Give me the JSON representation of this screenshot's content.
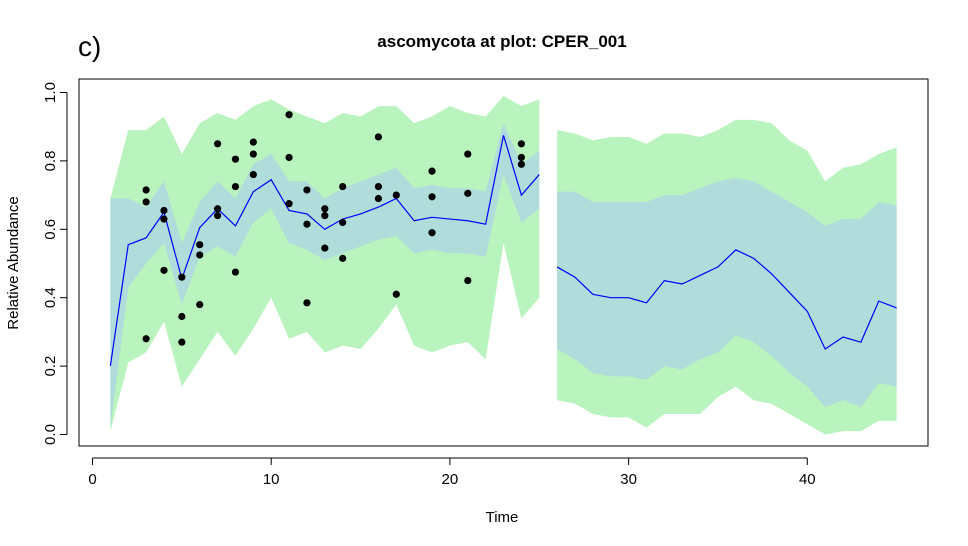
{
  "chart_data": {
    "type": "line",
    "panel_label": "c)",
    "title": "ascomycota at plot: CPER_001",
    "xlabel": "Time",
    "ylabel": "Relative Abundance",
    "xlim": [
      0,
      46
    ],
    "ylim": [
      0,
      1
    ],
    "x_ticks": [
      0,
      10,
      20,
      30,
      40
    ],
    "y_ticks": [
      0.0,
      0.2,
      0.4,
      0.6,
      0.8,
      1.0
    ],
    "x_tick_labels": [
      "0",
      "10",
      "20",
      "30",
      "40"
    ],
    "y_tick_labels": [
      "0.0",
      "0.2",
      "0.4",
      "0.6",
      "0.8",
      "1.0"
    ],
    "grid": false,
    "colors": {
      "outer_band": "#b9f3bd",
      "inner_band": "#b0dcdc",
      "mean_line": "#0000ff",
      "points": "#000000"
    },
    "segments": [
      {
        "x": [
          1,
          2,
          3,
          4,
          5,
          6,
          7,
          8,
          9,
          10,
          11,
          12,
          13,
          14,
          15,
          16,
          17,
          18,
          19,
          20,
          21,
          22,
          23,
          24,
          25
        ],
        "mean": [
          0.2,
          0.555,
          0.575,
          0.65,
          0.455,
          0.605,
          0.66,
          0.61,
          0.71,
          0.745,
          0.655,
          0.645,
          0.6,
          0.63,
          0.645,
          0.665,
          0.69,
          0.625,
          0.635,
          0.63,
          0.625,
          0.615,
          0.875,
          0.7,
          0.76
        ],
        "ci50_lower": [
          0.02,
          0.43,
          0.5,
          0.56,
          0.38,
          0.52,
          0.55,
          0.52,
          0.62,
          0.66,
          0.56,
          0.54,
          0.51,
          0.53,
          0.55,
          0.57,
          0.58,
          0.53,
          0.54,
          0.53,
          0.53,
          0.52,
          0.76,
          0.62,
          0.66
        ],
        "ci50_upper": [
          0.69,
          0.69,
          0.665,
          0.74,
          0.56,
          0.68,
          0.74,
          0.69,
          0.79,
          0.82,
          0.74,
          0.74,
          0.69,
          0.72,
          0.74,
          0.76,
          0.78,
          0.72,
          0.73,
          0.72,
          0.72,
          0.71,
          0.91,
          0.79,
          0.83
        ],
        "ci95_lower": [
          0.01,
          0.21,
          0.24,
          0.33,
          0.14,
          0.22,
          0.3,
          0.23,
          0.31,
          0.4,
          0.28,
          0.3,
          0.24,
          0.26,
          0.25,
          0.31,
          0.38,
          0.26,
          0.24,
          0.26,
          0.27,
          0.22,
          0.56,
          0.34,
          0.4
        ],
        "ci95_upper": [
          0.69,
          0.89,
          0.89,
          0.93,
          0.82,
          0.91,
          0.94,
          0.92,
          0.96,
          0.98,
          0.95,
          0.93,
          0.91,
          0.94,
          0.93,
          0.96,
          0.96,
          0.91,
          0.93,
          0.96,
          0.94,
          0.93,
          0.99,
          0.96,
          0.98
        ]
      },
      {
        "x": [
          26,
          27,
          28,
          29,
          30,
          31,
          32,
          33,
          34,
          35,
          36,
          37,
          38,
          39,
          40,
          41,
          42,
          43,
          44,
          45
        ],
        "mean": [
          0.49,
          0.46,
          0.41,
          0.4,
          0.4,
          0.385,
          0.45,
          0.44,
          0.465,
          0.49,
          0.54,
          0.515,
          0.47,
          0.415,
          0.36,
          0.25,
          0.285,
          0.27,
          0.39,
          0.37
        ],
        "ci50_lower": [
          0.25,
          0.22,
          0.18,
          0.17,
          0.17,
          0.16,
          0.2,
          0.19,
          0.22,
          0.24,
          0.29,
          0.27,
          0.23,
          0.18,
          0.14,
          0.08,
          0.1,
          0.08,
          0.15,
          0.14
        ],
        "ci50_upper": [
          0.71,
          0.71,
          0.68,
          0.68,
          0.68,
          0.68,
          0.7,
          0.7,
          0.72,
          0.74,
          0.75,
          0.74,
          0.71,
          0.68,
          0.65,
          0.61,
          0.63,
          0.63,
          0.68,
          0.67
        ],
        "ci95_lower": [
          0.1,
          0.09,
          0.06,
          0.05,
          0.05,
          0.02,
          0.06,
          0.06,
          0.06,
          0.11,
          0.14,
          0.1,
          0.09,
          0.06,
          0.03,
          0.0,
          0.01,
          0.01,
          0.04,
          0.04
        ],
        "ci95_upper": [
          0.89,
          0.88,
          0.86,
          0.87,
          0.87,
          0.85,
          0.88,
          0.88,
          0.87,
          0.89,
          0.92,
          0.92,
          0.91,
          0.86,
          0.83,
          0.74,
          0.78,
          0.79,
          0.82,
          0.84
        ]
      }
    ],
    "points": [
      [
        3,
        0.715
      ],
      [
        3,
        0.68
      ],
      [
        3,
        0.28
      ],
      [
        4,
        0.655
      ],
      [
        4,
        0.63
      ],
      [
        4,
        0.48
      ],
      [
        5,
        0.46
      ],
      [
        5,
        0.345
      ],
      [
        5,
        0.27
      ],
      [
        6,
        0.555
      ],
      [
        6,
        0.525
      ],
      [
        6,
        0.38
      ],
      [
        7,
        0.85
      ],
      [
        7,
        0.66
      ],
      [
        7,
        0.64
      ],
      [
        8,
        0.805
      ],
      [
        8,
        0.725
      ],
      [
        8,
        0.475
      ],
      [
        9,
        0.855
      ],
      [
        9,
        0.82
      ],
      [
        9,
        0.76
      ],
      [
        11,
        0.935
      ],
      [
        11,
        0.81
      ],
      [
        11,
        0.675
      ],
      [
        12,
        0.715
      ],
      [
        12,
        0.615
      ],
      [
        12,
        0.385
      ],
      [
        13,
        0.66
      ],
      [
        13,
        0.64
      ],
      [
        13,
        0.545
      ],
      [
        14,
        0.725
      ],
      [
        14,
        0.62
      ],
      [
        14,
        0.515
      ],
      [
        16,
        0.87
      ],
      [
        16,
        0.725
      ],
      [
        16,
        0.69
      ],
      [
        17,
        0.7
      ],
      [
        17,
        0.41
      ],
      [
        19,
        0.77
      ],
      [
        19,
        0.695
      ],
      [
        19,
        0.59
      ],
      [
        21,
        0.82
      ],
      [
        21,
        0.705
      ],
      [
        21,
        0.45
      ],
      [
        24,
        0.85
      ],
      [
        24,
        0.81
      ],
      [
        24,
        0.79
      ]
    ]
  }
}
